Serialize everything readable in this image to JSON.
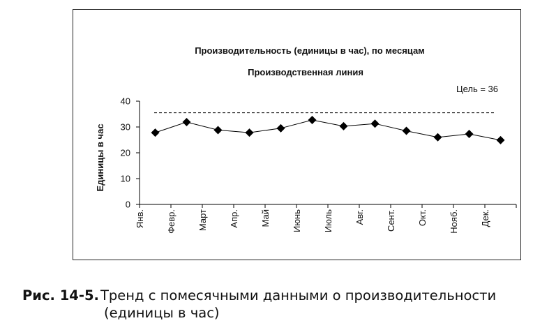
{
  "chart_data": {
    "type": "line",
    "title": "Производительность (единицы в час), по месяцам",
    "subtitle": "Производственная линия",
    "ylabel": "Единицы в час",
    "xlabel": "",
    "ylim": [
      0,
      40
    ],
    "yticks": [
      0,
      10,
      20,
      30,
      40
    ],
    "categories": [
      "Янв.",
      "Февр.",
      "Март",
      "Апр.",
      "Май",
      "Июнь",
      "Июль",
      "Авг.",
      "Сент.",
      "Окт.",
      "Нояб.",
      "Дек."
    ],
    "values": [
      27.8,
      31.9,
      28.8,
      27.8,
      29.5,
      32.7,
      30.3,
      31.3,
      28.5,
      26.0,
      27.3,
      24.9
    ],
    "target": {
      "label": "Цель = 36",
      "value": 35.5,
      "style": "dashed"
    },
    "marker": "diamond",
    "grid": false,
    "line_color": "#000000"
  },
  "caption": {
    "number": "Рис. 14-5.",
    "text_line1": "Тренд с помесячными данными о производительности",
    "text_line2": "(единицы в час)"
  }
}
